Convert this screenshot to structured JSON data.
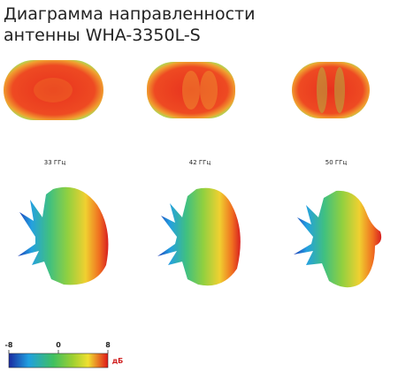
{
  "header": {
    "title_lines": [
      "Диаграмма направленности",
      "антенны WHA-3350L-S"
    ]
  },
  "panels": [
    {
      "label": "33 ГГц"
    },
    {
      "label": "42 ГГц"
    },
    {
      "label": "50 ГГц"
    }
  ],
  "colorbar": {
    "lim": [
      -8,
      8
    ],
    "ticks": [
      -8,
      0,
      8
    ],
    "unit": "дБ"
  }
}
